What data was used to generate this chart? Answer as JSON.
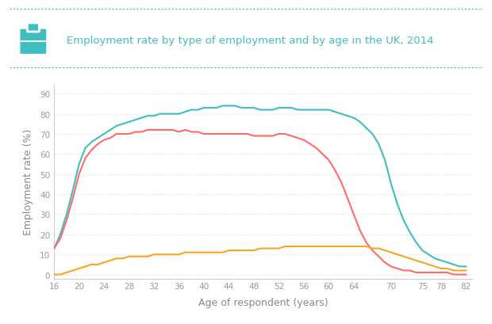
{
  "title": "Employment rate by type of employment and by age in the UK, 2014",
  "xlabel": "Age of respondent (years)",
  "ylabel": "Employment rate (%)",
  "bg_color": "#ffffff",
  "title_color": "#3dbfbf",
  "axis_color": "#cccccc",
  "grid_color": "#dddddd",
  "tick_color": "#999999",
  "label_color": "#888888",
  "line_colors": [
    "#3dbfbf",
    "#ff6b6b",
    "#f5a623"
  ],
  "x_ticks": [
    16,
    20,
    24,
    28,
    32,
    36,
    40,
    44,
    48,
    52,
    56,
    60,
    64,
    70,
    75,
    78,
    82
  ],
  "y_ticks": [
    0,
    10,
    20,
    30,
    40,
    50,
    60,
    70,
    80,
    90
  ],
  "ylim": [
    -2,
    95
  ],
  "xlim": [
    16,
    83
  ],
  "ages": [
    16,
    17,
    18,
    19,
    20,
    21,
    22,
    23,
    24,
    25,
    26,
    27,
    28,
    29,
    30,
    31,
    32,
    33,
    34,
    35,
    36,
    37,
    38,
    39,
    40,
    41,
    42,
    43,
    44,
    45,
    46,
    47,
    48,
    49,
    50,
    51,
    52,
    53,
    54,
    55,
    56,
    57,
    58,
    59,
    60,
    61,
    62,
    63,
    64,
    65,
    66,
    67,
    68,
    69,
    70,
    71,
    72,
    73,
    74,
    75,
    76,
    77,
    78,
    79,
    80,
    81,
    82
  ],
  "teal": [
    13,
    20,
    30,
    42,
    55,
    63,
    66,
    68,
    70,
    72,
    74,
    75,
    76,
    77,
    78,
    79,
    79,
    80,
    80,
    80,
    80,
    81,
    82,
    82,
    83,
    83,
    83,
    84,
    84,
    84,
    83,
    83,
    83,
    82,
    82,
    82,
    83,
    83,
    83,
    82,
    82,
    82,
    82,
    82,
    82,
    81,
    80,
    79,
    78,
    76,
    73,
    70,
    65,
    57,
    45,
    35,
    27,
    21,
    16,
    12,
    10,
    8,
    7,
    6,
    5,
    4,
    4
  ],
  "red": [
    13,
    18,
    27,
    38,
    50,
    58,
    62,
    65,
    67,
    68,
    70,
    70,
    70,
    71,
    71,
    72,
    72,
    72,
    72,
    72,
    71,
    72,
    71,
    71,
    70,
    70,
    70,
    70,
    70,
    70,
    70,
    70,
    69,
    69,
    69,
    69,
    70,
    70,
    69,
    68,
    67,
    65,
    63,
    60,
    57,
    52,
    46,
    38,
    30,
    22,
    16,
    12,
    9,
    6,
    4,
    3,
    2,
    2,
    1,
    1,
    1,
    1,
    1,
    1,
    0,
    0,
    0
  ],
  "orange": [
    0,
    0,
    1,
    2,
    3,
    4,
    5,
    5,
    6,
    7,
    8,
    8,
    9,
    9,
    9,
    9,
    10,
    10,
    10,
    10,
    10,
    11,
    11,
    11,
    11,
    11,
    11,
    11,
    12,
    12,
    12,
    12,
    12,
    13,
    13,
    13,
    13,
    14,
    14,
    14,
    14,
    14,
    14,
    14,
    14,
    14,
    14,
    14,
    14,
    14,
    14,
    13,
    13,
    12,
    11,
    10,
    9,
    8,
    7,
    6,
    5,
    4,
    3,
    3,
    2,
    2,
    2
  ]
}
